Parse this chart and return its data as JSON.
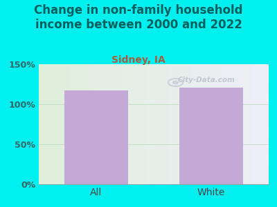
{
  "title": "Change in non-family household\nincome between 2000 and 2022",
  "subtitle": "Sidney, IA",
  "categories": [
    "All",
    "White"
  ],
  "values": [
    117,
    121
  ],
  "bar_color": "#c4a8d6",
  "title_color": "#006060",
  "subtitle_color": "#a06040",
  "tick_label_color": "#336666",
  "xlabel_color": "#444444",
  "ylim": [
    0,
    150
  ],
  "yticks": [
    0,
    50,
    100,
    150
  ],
  "ytick_labels": [
    "0%",
    "50%",
    "100%",
    "150%"
  ],
  "bg_outer": "#00f0f0",
  "bg_left": "#dff0da",
  "bg_right": "#eeeef8",
  "watermark_text": "City-Data.com",
  "title_fontsize": 12,
  "subtitle_fontsize": 10,
  "tick_fontsize": 9,
  "xlabel_fontsize": 10,
  "bar_width": 0.55
}
